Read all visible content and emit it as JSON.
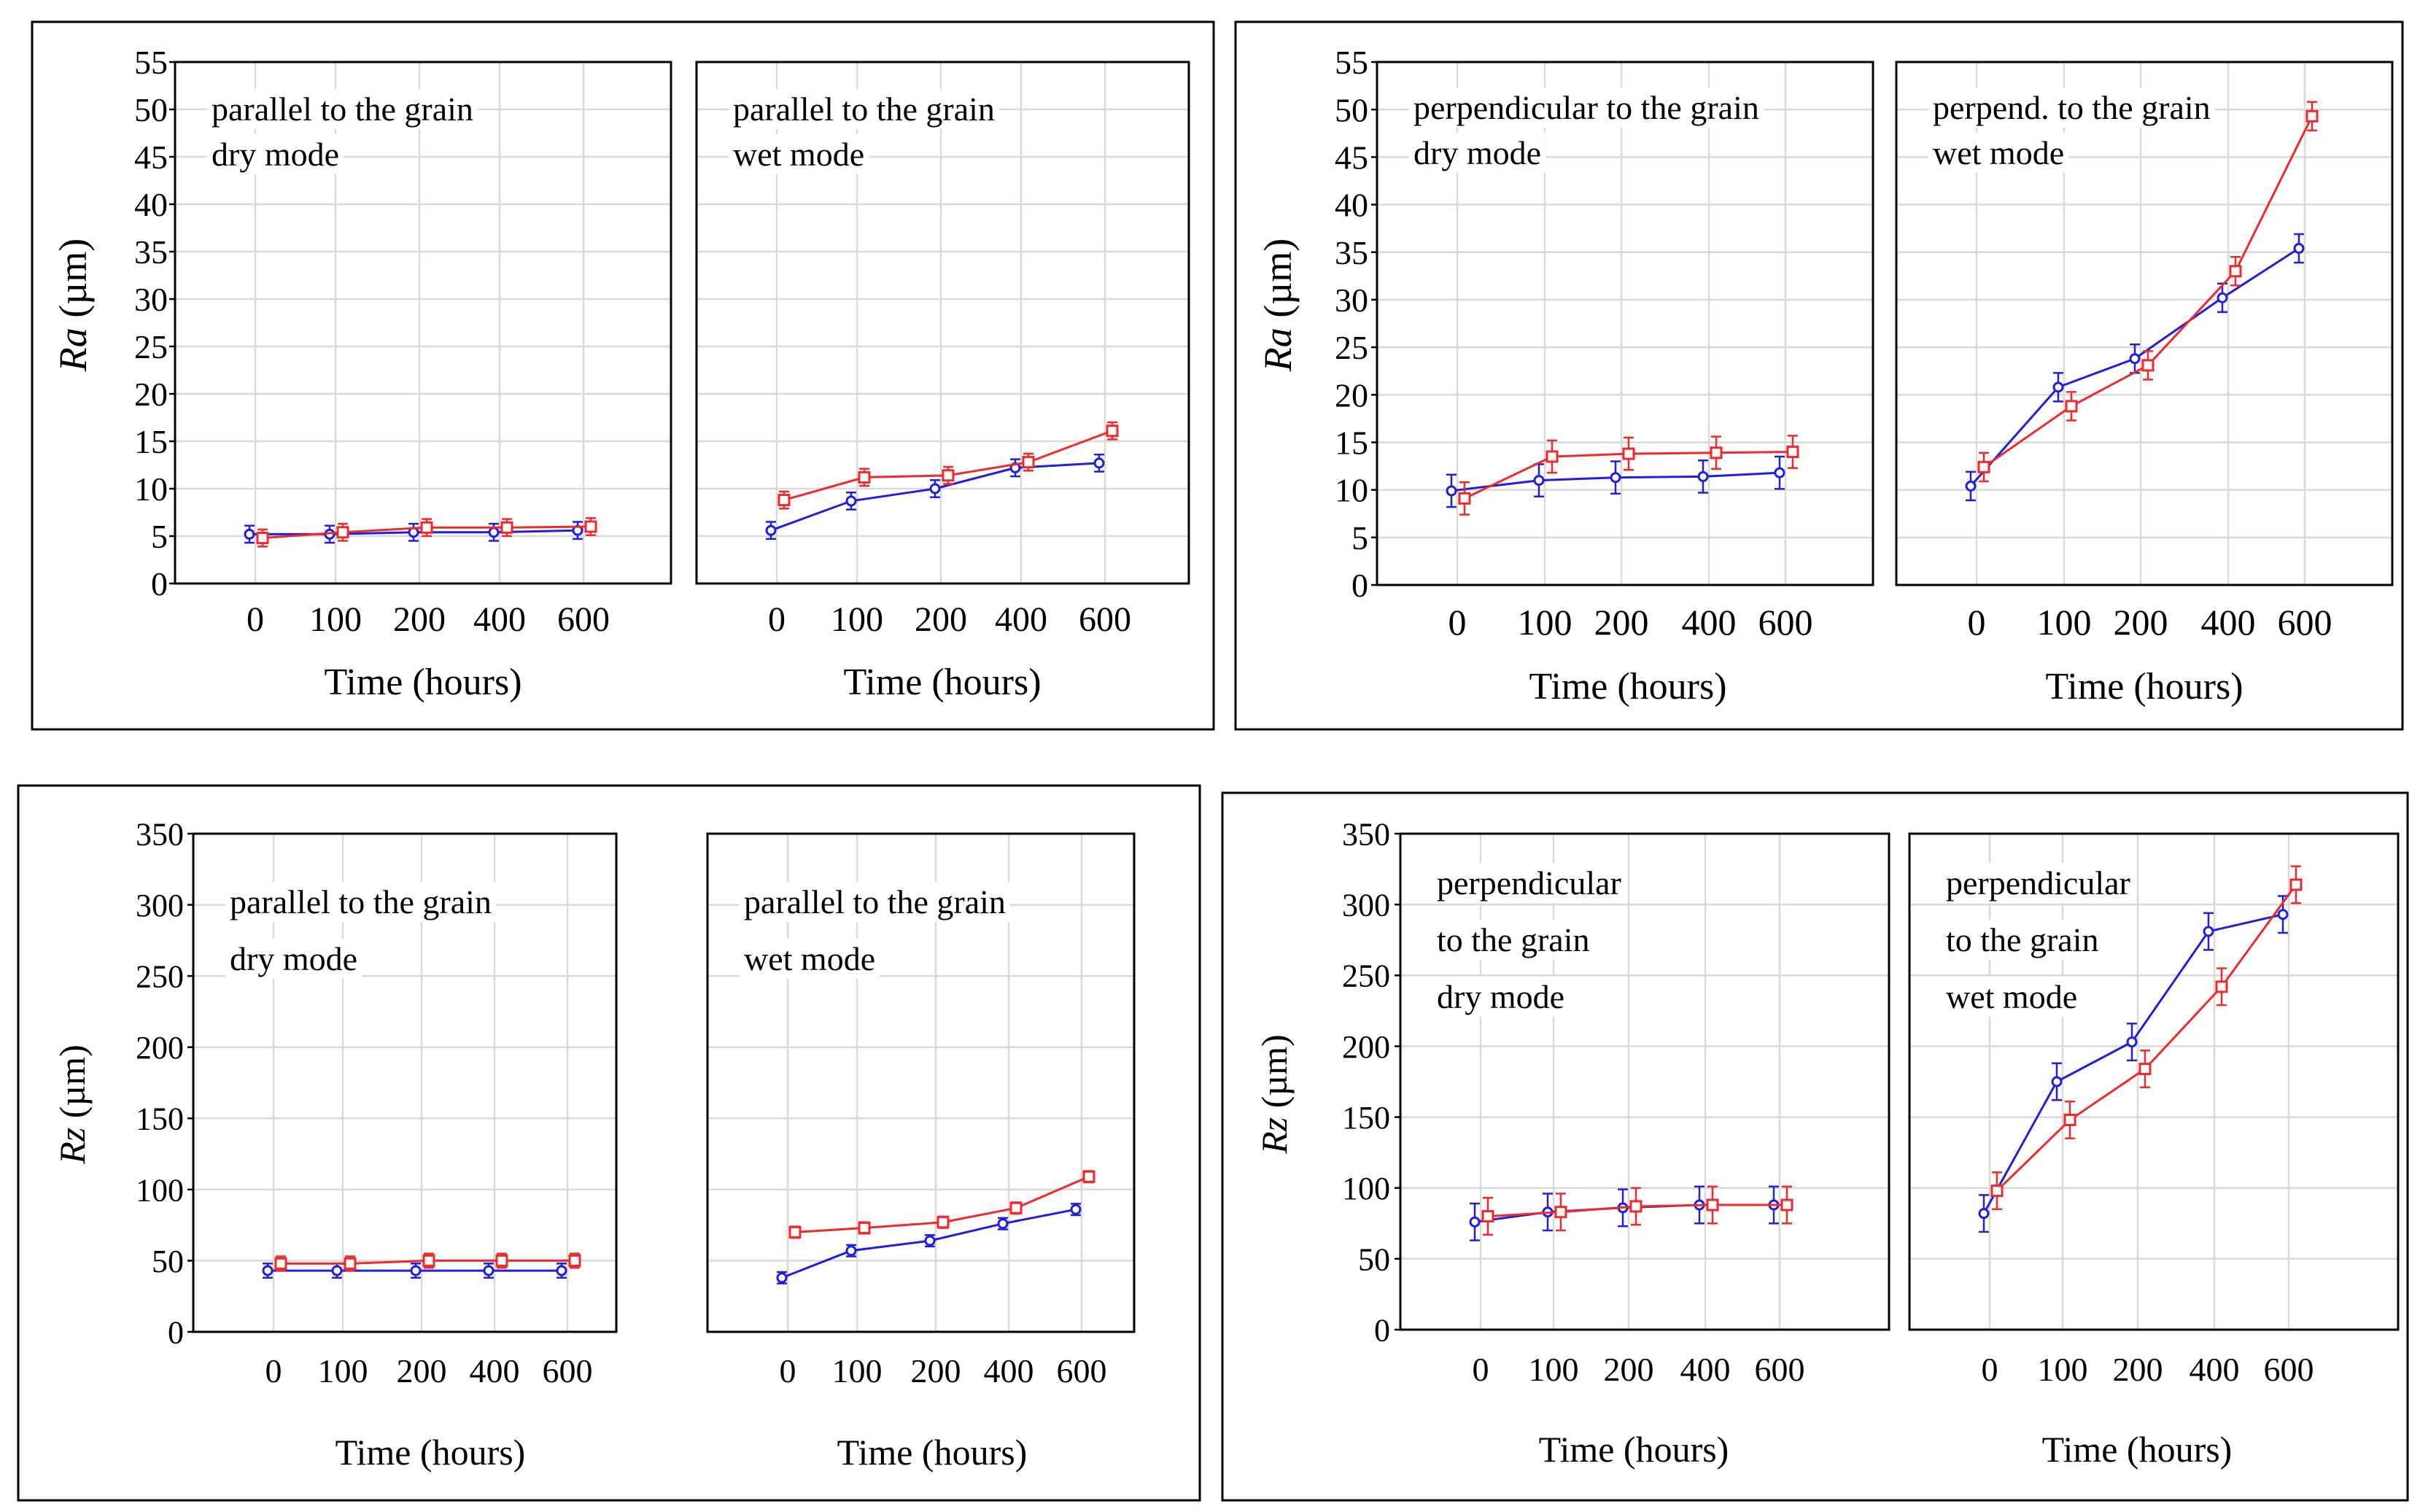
{
  "figure": {
    "colors": {
      "series_a": "#1f1fdc",
      "series_b": "#ee2a2a",
      "grid": "#d9d9d9",
      "frame": "#000000"
    }
  },
  "chart_data": [
    {
      "type": "line",
      "group": "top-left",
      "ylabel_italic": "Ra",
      "ylabel_rest": " (µm)",
      "xlabel": "Time (hours)",
      "ylim": [
        0,
        55
      ],
      "yticks": [
        0,
        5,
        10,
        15,
        20,
        25,
        30,
        35,
        40,
        45,
        50,
        55
      ],
      "categories": [
        "0",
        "100",
        "200",
        "400",
        "600"
      ],
      "panels": [
        {
          "annotation": [
            "parallel to the grain",
            "dry mode"
          ],
          "series": [
            {
              "name": "series-blue",
              "marker": "circle",
              "values": [
                5.2,
                5.2,
                5.4,
                5.4,
                5.6
              ],
              "errors": [
                0.9,
                0.9,
                0.9,
                0.9,
                0.9
              ]
            },
            {
              "name": "series-red",
              "marker": "square",
              "values": [
                4.8,
                5.4,
                5.9,
                5.9,
                6.0
              ],
              "errors": [
                0.9,
                0.9,
                0.9,
                0.9,
                0.9
              ]
            }
          ]
        },
        {
          "annotation": [
            "parallel to the grain",
            "wet mode"
          ],
          "series": [
            {
              "name": "series-blue",
              "marker": "circle",
              "values": [
                5.6,
                8.7,
                10.0,
                12.2,
                12.7
              ],
              "errors": [
                0.9,
                0.9,
                0.9,
                0.9,
                0.9
              ]
            },
            {
              "name": "series-red",
              "marker": "square",
              "values": [
                8.8,
                11.2,
                11.4,
                12.8,
                16.1
              ],
              "errors": [
                0.9,
                0.9,
                0.9,
                0.9,
                0.9
              ]
            }
          ]
        }
      ]
    },
    {
      "type": "line",
      "group": "top-right",
      "ylabel_italic": "Ra",
      "ylabel_rest": " (µm)",
      "xlabel": "Time (hours)",
      "ylim": [
        0,
        55
      ],
      "yticks": [
        0,
        5,
        10,
        15,
        20,
        25,
        30,
        35,
        40,
        45,
        50,
        55
      ],
      "categories": [
        "0",
        "100",
        "200",
        "400",
        "600"
      ],
      "panels": [
        {
          "annotation": [
            "perpendicular to the grain",
            "dry mode"
          ],
          "series": [
            {
              "name": "series-blue",
              "marker": "circle",
              "values": [
                9.9,
                11.0,
                11.3,
                11.4,
                11.8
              ],
              "errors": [
                1.7,
                1.7,
                1.7,
                1.7,
                1.7
              ]
            },
            {
              "name": "series-red",
              "marker": "square",
              "values": [
                9.1,
                13.5,
                13.8,
                13.9,
                14.0
              ],
              "errors": [
                1.7,
                1.7,
                1.7,
                1.7,
                1.7
              ]
            }
          ]
        },
        {
          "annotation": [
            "perpend. to the grain",
            "wet mode"
          ],
          "series": [
            {
              "name": "series-blue",
              "marker": "circle",
              "values": [
                10.4,
                20.8,
                23.8,
                30.2,
                35.4
              ],
              "errors": [
                1.5,
                1.5,
                1.5,
                1.5,
                1.5
              ]
            },
            {
              "name": "series-red",
              "marker": "square",
              "values": [
                12.4,
                18.8,
                23.1,
                33.0,
                49.3
              ],
              "errors": [
                1.5,
                1.5,
                1.5,
                1.5,
                1.5
              ]
            }
          ]
        }
      ]
    },
    {
      "type": "line",
      "group": "bottom-left",
      "ylabel_italic": "Rz",
      "ylabel_rest": " (µm)",
      "xlabel": "Time (hours)",
      "ylim": [
        0,
        350
      ],
      "yticks": [
        0,
        50,
        100,
        150,
        200,
        250,
        300,
        350
      ],
      "categories": [
        "0",
        "100",
        "200",
        "400",
        "600"
      ],
      "panels": [
        {
          "annotation": [
            "parallel to the grain",
            "dry mode"
          ],
          "series": [
            {
              "name": "series-blue",
              "marker": "circle",
              "values": [
                43,
                43,
                43,
                43,
                43
              ],
              "errors": [
                5,
                5,
                5,
                5,
                5
              ]
            },
            {
              "name": "series-red",
              "marker": "square",
              "values": [
                48,
                48,
                50,
                50,
                50
              ],
              "errors": [
                5,
                5,
                5,
                5,
                5
              ]
            }
          ]
        },
        {
          "annotation": [
            "parallel to the grain",
            "wet mode"
          ],
          "series": [
            {
              "name": "series-blue",
              "marker": "circle",
              "values": [
                38,
                57,
                64,
                76,
                86
              ],
              "errors": [
                4,
                4,
                4,
                4,
                4
              ]
            },
            {
              "name": "series-red",
              "marker": "square",
              "values": [
                70,
                73,
                77,
                87,
                109
              ],
              "errors": [
                4,
                4,
                4,
                4,
                4
              ]
            }
          ]
        }
      ]
    },
    {
      "type": "line",
      "group": "bottom-right",
      "ylabel_italic": "Rz",
      "ylabel_rest": " (µm)",
      "xlabel": "Time (hours)",
      "ylim": [
        0,
        350
      ],
      "yticks": [
        0,
        50,
        100,
        150,
        200,
        250,
        300,
        350
      ],
      "categories": [
        "0",
        "100",
        "200",
        "400",
        "600"
      ],
      "panels": [
        {
          "annotation": [
            "perpendicular",
            "to the grain",
            "dry mode"
          ],
          "series": [
            {
              "name": "series-blue",
              "marker": "circle",
              "values": [
                76,
                83,
                86,
                88,
                88
              ],
              "errors": [
                13,
                13,
                13,
                13,
                13
              ]
            },
            {
              "name": "series-red",
              "marker": "square",
              "values": [
                80,
                83,
                87,
                88,
                88
              ],
              "errors": [
                13,
                13,
                13,
                13,
                13
              ]
            }
          ]
        },
        {
          "annotation": [
            "perpendicular",
            "to the grain",
            "wet mode"
          ],
          "series": [
            {
              "name": "series-blue",
              "marker": "circle",
              "values": [
                82,
                175,
                203,
                281,
                293
              ],
              "errors": [
                13,
                13,
                13,
                13,
                13
              ]
            },
            {
              "name": "series-red",
              "marker": "square",
              "values": [
                98,
                148,
                184,
                242,
                314
              ],
              "errors": [
                13,
                13,
                13,
                13,
                13
              ]
            }
          ]
        }
      ]
    }
  ]
}
